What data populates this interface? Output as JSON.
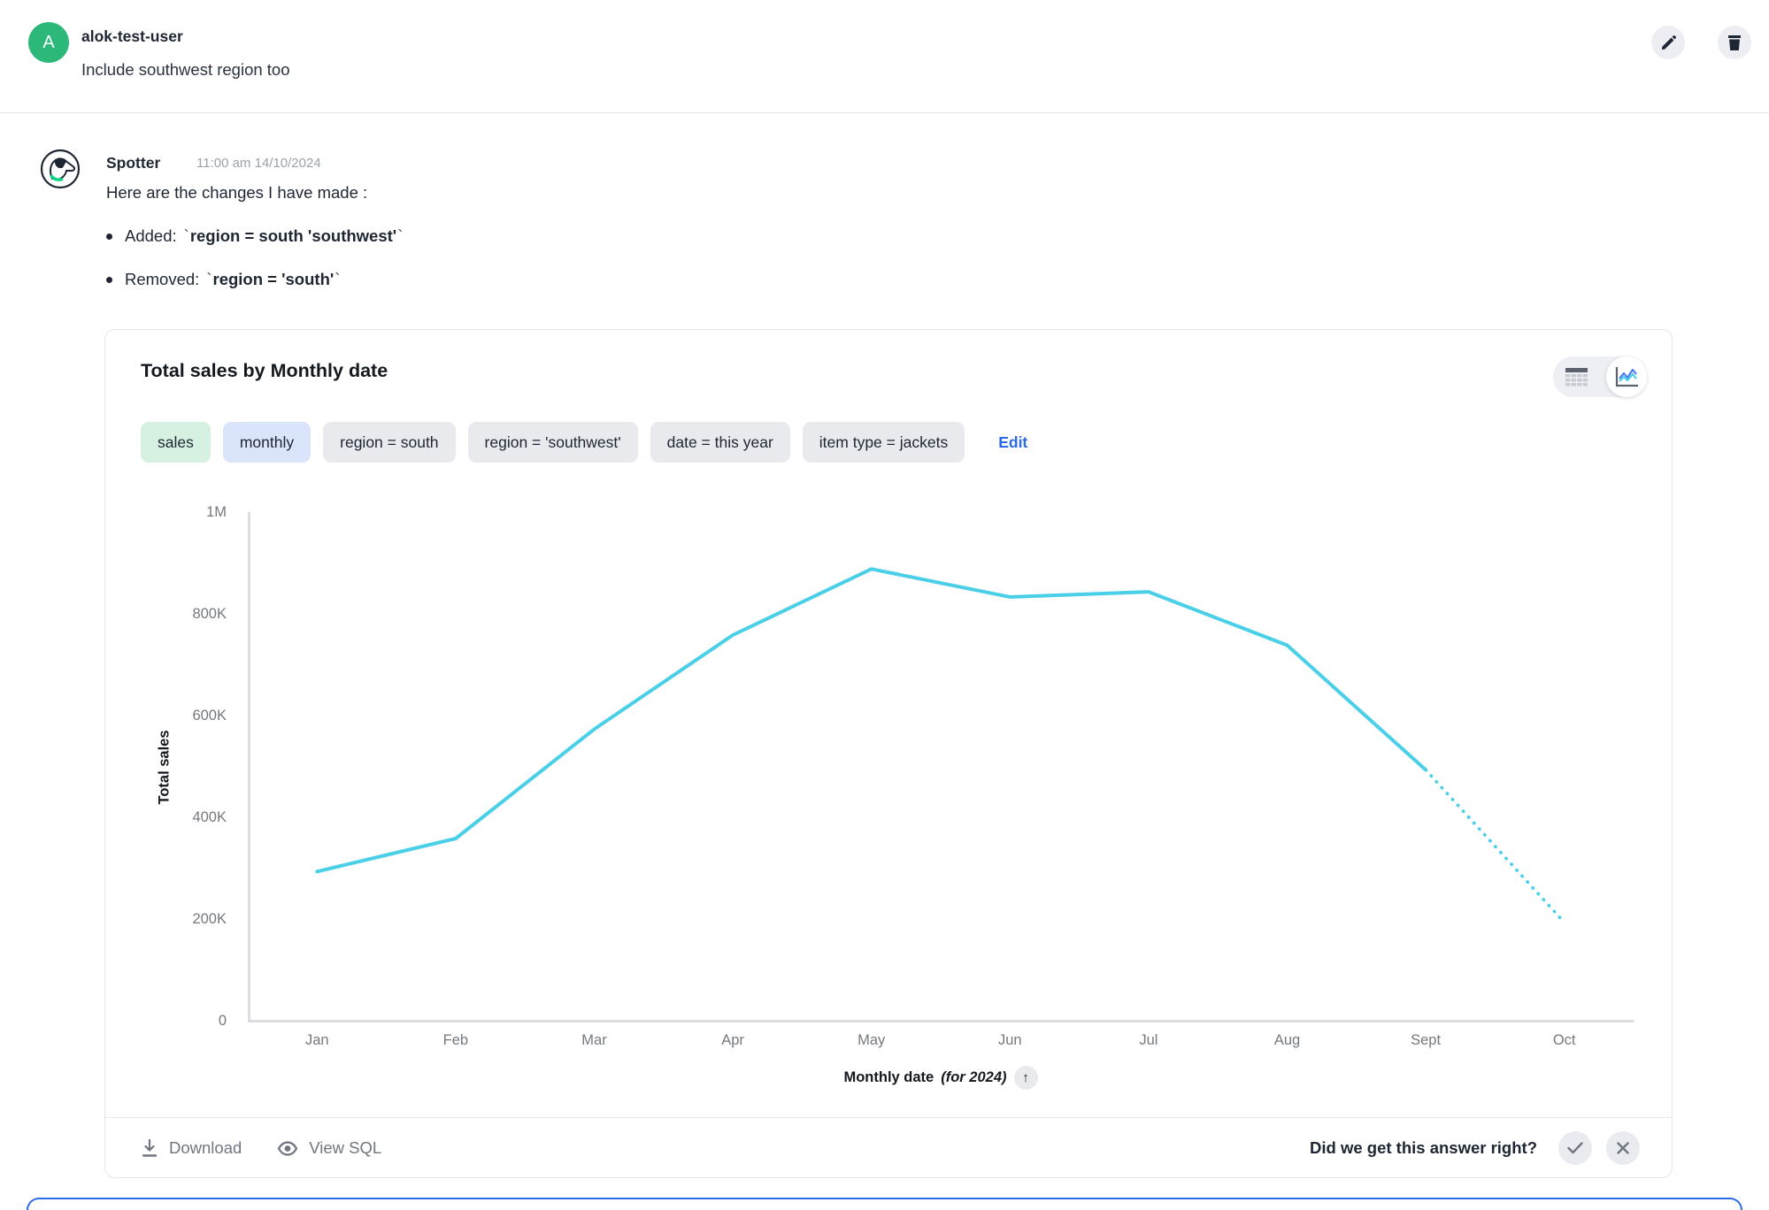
{
  "user_message": {
    "avatar_initial": "A",
    "username": "alok-test-user",
    "text": "Include southwest region too"
  },
  "assistant": {
    "name": "Spotter",
    "timestamp": "11:00 am 14/10/2024",
    "intro": "Here are the changes I have made :",
    "backtick": "`",
    "changes": [
      {
        "label": "Added:",
        "code": "region = south 'southwest'"
      },
      {
        "label": "Removed:",
        "code": "region = 'south'"
      }
    ]
  },
  "card": {
    "title": "Total sales by Monthly date",
    "chips": [
      {
        "label": "sales",
        "type": "green"
      },
      {
        "label": "monthly",
        "type": "blue"
      },
      {
        "label": "region = south",
        "type": "gray"
      },
      {
        "label": "region = 'southwest'",
        "type": "gray"
      },
      {
        "label": "date = this year",
        "type": "gray"
      },
      {
        "label": "item type = jackets",
        "type": "gray"
      }
    ],
    "edit_label": "Edit",
    "footer": {
      "download_label": "Download",
      "view_sql_label": "View SQL",
      "feedback_question": "Did we get this answer right?"
    }
  },
  "chart_data": {
    "type": "line",
    "title": "Total sales by Monthly date",
    "x": [
      "Jan",
      "Feb",
      "Mar",
      "Apr",
      "May",
      "Jun",
      "Jul",
      "Aug",
      "Sept",
      "Oct"
    ],
    "series": [
      {
        "name": "Total sales",
        "values": [
          295000,
          360000,
          575000,
          760000,
          890000,
          835000,
          845000,
          740000,
          495000,
          195000
        ]
      }
    ],
    "dotted_from_index": 8,
    "ylabel": "Total sales",
    "xlabel": "Monthly date",
    "xlabel_suffix": "(for 2024)",
    "sort_arrow": "↑",
    "ylim": [
      0,
      1000000
    ],
    "yticks": [
      {
        "value": 0,
        "label": "0"
      },
      {
        "value": 200000,
        "label": "200K"
      },
      {
        "value": 400000,
        "label": "400K"
      },
      {
        "value": 600000,
        "label": "600K"
      },
      {
        "value": 800000,
        "label": "800K"
      },
      {
        "value": 1000000,
        "label": "1M"
      }
    ],
    "line_color": "#49CFE8",
    "axis_color": "#DBDDE2",
    "grid": false,
    "legend_position": "none"
  }
}
